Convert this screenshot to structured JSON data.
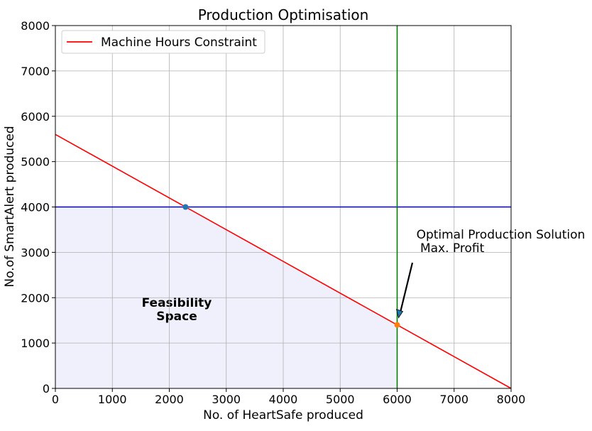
{
  "chart_data": {
    "type": "line",
    "title": "Production Optimisation",
    "xlabel": "No. of HeartSafe produced",
    "ylabel": "No.of SmartAlert produced",
    "xlim": [
      0,
      8000
    ],
    "ylim": [
      0,
      8000
    ],
    "xticks": [
      0,
      1000,
      2000,
      3000,
      4000,
      5000,
      6000,
      7000,
      8000
    ],
    "yticks": [
      0,
      1000,
      2000,
      3000,
      4000,
      5000,
      6000,
      7000,
      8000
    ],
    "grid": true,
    "legend_position": "top-left",
    "series": [
      {
        "name": "Machine Hours Constraint",
        "color": "#ff0000",
        "x": [
          0,
          8000
        ],
        "y": [
          5600,
          0
        ]
      }
    ],
    "hlines": [
      {
        "y": 4000,
        "color": "#0000cc"
      }
    ],
    "vlines": [
      {
        "x": 6000,
        "color": "#008000"
      }
    ],
    "points": [
      {
        "x": 2285,
        "y": 4000,
        "color": "#1f77b4"
      },
      {
        "x": 6000,
        "y": 1400,
        "color": "#ff7f0e"
      }
    ],
    "feasible_region": {
      "polygon": [
        [
          0,
          0
        ],
        [
          0,
          4000
        ],
        [
          2285,
          4000
        ],
        [
          6000,
          1400
        ],
        [
          6000,
          0
        ]
      ],
      "color": "#e6e6fa",
      "label": [
        "Feasibility",
        "Space"
      ]
    },
    "annotation": {
      "lines": [
        "Optimal Production Solution",
        " Max. Profit"
      ],
      "text_at": [
        6300,
        3000
      ],
      "arrow_to": [
        6000,
        1400
      ]
    }
  }
}
